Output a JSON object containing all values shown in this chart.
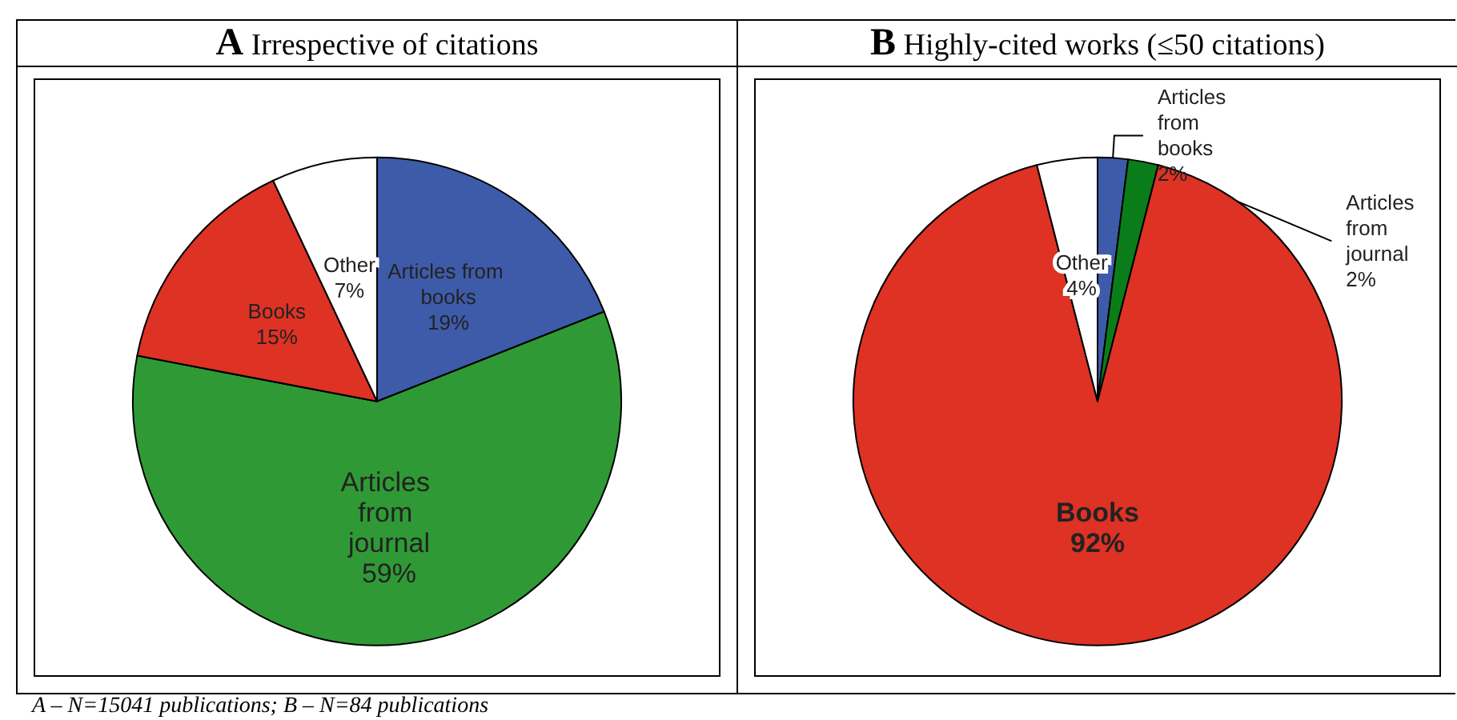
{
  "chart_data": [
    {
      "type": "pie",
      "title": "A Irrespective of citations",
      "categories": [
        "Articles from books",
        "Articles from journal",
        "Books",
        "Other"
      ],
      "values": [
        19,
        59,
        15,
        7
      ],
      "colors": [
        "#3d5ba9",
        "#2f9a35",
        "#dd3224",
        "#ffffff"
      ],
      "value_labels": [
        "19%",
        "59%",
        "15%",
        "7%"
      ],
      "annotations": [
        "A – N=15041 publications; B – N=84 publications"
      ]
    },
    {
      "type": "pie",
      "title": "B Highly-cited works (≤50 citations)",
      "categories": [
        "Articles from books",
        "Articles from journal",
        "Books",
        "Other"
      ],
      "values": [
        2,
        2,
        92,
        4
      ],
      "colors": [
        "#3d5ba9",
        "#0a7d1a",
        "#dd3224",
        "#ffffff"
      ],
      "value_labels": [
        "2%",
        "2%",
        "92%",
        "4%"
      ]
    }
  ]
}
